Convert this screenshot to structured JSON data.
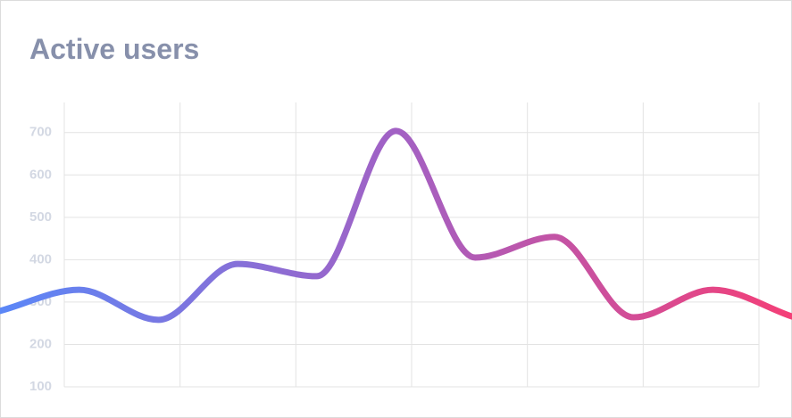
{
  "chart_data": {
    "type": "line",
    "title": "Active users",
    "values": [
      279,
      329,
      258,
      390,
      361,
      704,
      405,
      454,
      264,
      329,
      266
    ],
    "colors": [
      "#5b87f7",
      "#a261c4",
      "#f43f77"
    ],
    "ylim": [
      100,
      771
    ],
    "yticks": [
      100,
      200,
      300,
      400,
      500,
      600,
      700
    ],
    "grid": true
  }
}
